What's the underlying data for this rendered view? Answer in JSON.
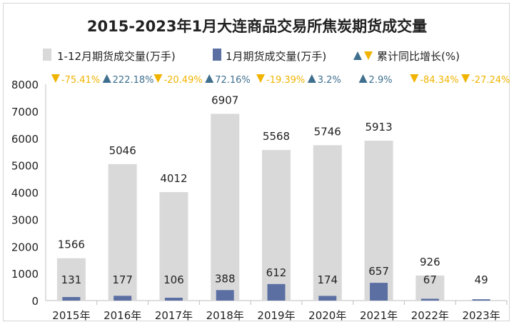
{
  "chart_data": {
    "type": "bar",
    "title": "2015-2023年1月大连商品交易所焦炭期货成交量",
    "categories": [
      "2015年",
      "2016年",
      "2017年",
      "2018年",
      "2019年",
      "2020年",
      "2021年",
      "2022年",
      "2023年"
    ],
    "series": [
      {
        "name": "1-12月期货成交量(万手)",
        "values": [
          1566,
          5046,
          4012,
          6907,
          5568,
          5746,
          5913,
          926,
          null
        ],
        "labels": [
          "1566",
          "5046",
          "4012",
          "6907",
          "5568",
          "5746",
          "5913",
          "926",
          ""
        ]
      },
      {
        "name": "1月期货成交量(万手)",
        "values": [
          131,
          177,
          106,
          388,
          612,
          174,
          657,
          67,
          49
        ],
        "labels": [
          "131",
          "177",
          "106",
          "388",
          "612",
          "174",
          "657",
          "67",
          "49"
        ]
      }
    ],
    "growth": {
      "name": "累计同比增长(%)",
      "labels": [
        "-75.41%",
        "222.18%",
        "-20.49%",
        "72.16%",
        "-19.39%",
        "3.2%",
        "2.9%",
        "-84.34%",
        "-27.24%"
      ],
      "direction": [
        "down",
        "up",
        "down",
        "up",
        "down",
        "up",
        "up",
        "down",
        "down"
      ]
    },
    "ylim": [
      0,
      8000
    ],
    "yticks": [
      "0",
      "1000",
      "2000",
      "3000",
      "4000",
      "5000",
      "6000",
      "7000",
      "8000"
    ],
    "grid": false,
    "legend_position": "top",
    "colors": {
      "total_bar": "#d9d9d9",
      "jan_bar": "#5b6fa3",
      "up_marker": "#3f6f8e",
      "down_marker": "#f0b400",
      "text": "#222222"
    }
  }
}
